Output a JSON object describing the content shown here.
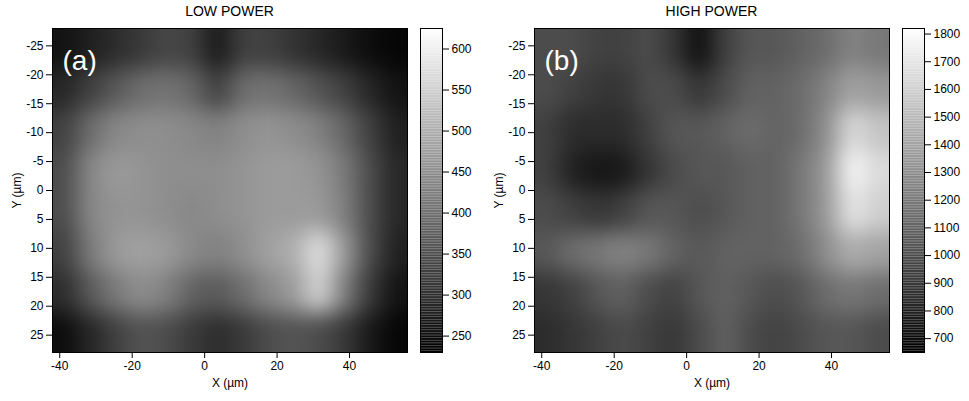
{
  "chart_data": [
    {
      "type": "heatmap",
      "title": "LOW POWER",
      "annotations": [
        "(a)"
      ],
      "x_label": "X (µm)",
      "y_label": "Y (µm)",
      "xlim": [
        -42,
        56
      ],
      "ylim": [
        -28,
        28
      ],
      "xticks": [
        -40,
        -20,
        0,
        20,
        40
      ],
      "yticks": [
        -25,
        -20,
        -15,
        -10,
        -5,
        0,
        5,
        10,
        15,
        20,
        25
      ],
      "x": [
        -38.5,
        -31.5,
        -24.5,
        -17.5,
        -10.5,
        -3.5,
        3.5,
        10.5,
        17.5,
        24.5,
        31.5,
        38.5,
        45.5,
        52.5
      ],
      "y": [
        -24.5,
        -17.5,
        -10.5,
        -3.5,
        3.5,
        10.5,
        17.5,
        24.5
      ],
      "values": [
        [
          260,
          280,
          300,
          320,
          340,
          330,
          270,
          330,
          330,
          310,
          290,
          270,
          250,
          240
        ],
        [
          290,
          330,
          370,
          400,
          410,
          390,
          330,
          400,
          410,
          390,
          360,
          330,
          290,
          260
        ],
        [
          330,
          400,
          440,
          450,
          450,
          440,
          430,
          450,
          460,
          450,
          430,
          390,
          330,
          280
        ],
        [
          350,
          440,
          470,
          460,
          450,
          450,
          450,
          460,
          470,
          470,
          460,
          420,
          350,
          290
        ],
        [
          350,
          440,
          460,
          460,
          450,
          440,
          450,
          460,
          470,
          470,
          470,
          430,
          350,
          290
        ],
        [
          330,
          420,
          470,
          480,
          470,
          440,
          430,
          450,
          480,
          500,
          580,
          470,
          350,
          280
        ],
        [
          300,
          370,
          420,
          450,
          430,
          380,
          370,
          400,
          440,
          470,
          560,
          430,
          320,
          260
        ],
        [
          250,
          290,
          330,
          360,
          350,
          320,
          300,
          320,
          350,
          360,
          350,
          320,
          270,
          240
        ]
      ],
      "colorbar_lim": [
        230,
        625
      ],
      "colorbar_ticks": [
        250,
        300,
        350,
        400,
        450,
        500,
        550,
        600
      ]
    },
    {
      "type": "heatmap",
      "title": "HIGH POWER",
      "annotations": [
        "(b)"
      ],
      "x_label": "X (µm)",
      "y_label": "Y (µm)",
      "xlim": [
        -42,
        56
      ],
      "ylim": [
        -28,
        28
      ],
      "xticks": [
        -40,
        -20,
        0,
        20,
        40
      ],
      "yticks": [
        -25,
        -20,
        -15,
        -10,
        -5,
        0,
        5,
        10,
        15,
        20,
        25
      ],
      "x": [
        -38.5,
        -31.5,
        -24.5,
        -17.5,
        -10.5,
        -3.5,
        3.5,
        10.5,
        17.5,
        24.5,
        31.5,
        38.5,
        45.5,
        52.5
      ],
      "y": [
        -24.5,
        -17.5,
        -10.5,
        -3.5,
        3.5,
        10.5,
        17.5,
        24.5
      ],
      "values": [
        [
          1000,
          1000,
          950,
          950,
          1000,
          900,
          720,
          950,
          1050,
          1050,
          1100,
          1150,
          1250,
          1200
        ],
        [
          1000,
          950,
          900,
          900,
          1000,
          1000,
          900,
          1000,
          1100,
          1100,
          1150,
          1250,
          1400,
          1350
        ],
        [
          950,
          850,
          850,
          850,
          950,
          1050,
          1050,
          1100,
          1150,
          1100,
          1150,
          1300,
          1650,
          1550
        ],
        [
          950,
          800,
          750,
          770,
          900,
          1000,
          1050,
          1050,
          1100,
          1100,
          1200,
          1350,
          1780,
          1650
        ],
        [
          1000,
          950,
          900,
          950,
          1050,
          1050,
          1000,
          1050,
          1100,
          1100,
          1200,
          1350,
          1700,
          1600
        ],
        [
          1050,
          1150,
          1200,
          1250,
          1200,
          1100,
          1050,
          1100,
          1100,
          1100,
          1150,
          1300,
          1450,
          1400
        ],
        [
          900,
          950,
          1050,
          1100,
          1000,
          950,
          1050,
          1100,
          1050,
          1000,
          1050,
          1150,
          1200,
          1150
        ],
        [
          850,
          900,
          950,
          1000,
          950,
          900,
          1000,
          1100,
          1000,
          950,
          1000,
          1050,
          1050,
          1000
        ]
      ],
      "colorbar_lim": [
        650,
        1820
      ],
      "colorbar_ticks": [
        700,
        800,
        900,
        1000,
        1100,
        1200,
        1300,
        1400,
        1500,
        1600,
        1700,
        1800
      ]
    }
  ]
}
